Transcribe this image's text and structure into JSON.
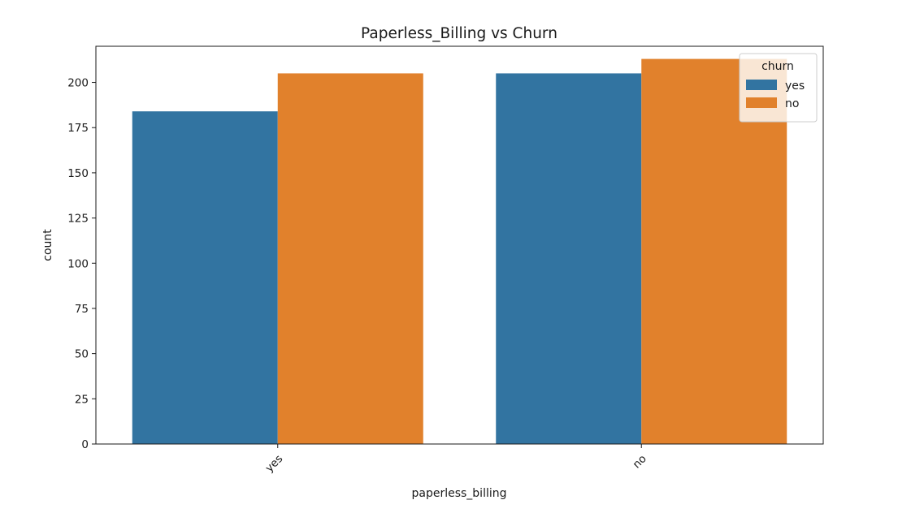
{
  "chart_data": {
    "type": "bar",
    "title": "Paperless_Billing vs Churn",
    "xlabel": "paperless_billing",
    "ylabel": "count",
    "categories": [
      "yes",
      "no"
    ],
    "series": [
      {
        "name": "yes",
        "values": [
          184,
          205
        ],
        "color": "#3274a1"
      },
      {
        "name": "no",
        "values": [
          205,
          213
        ],
        "color": "#e1812c"
      }
    ],
    "ylim": [
      0,
      220
    ],
    "yticks": [
      0,
      25,
      50,
      75,
      100,
      125,
      150,
      175,
      200
    ],
    "xtick_rotation": 45,
    "grid": false,
    "legend": {
      "title": "churn",
      "placement": "top-right"
    }
  }
}
